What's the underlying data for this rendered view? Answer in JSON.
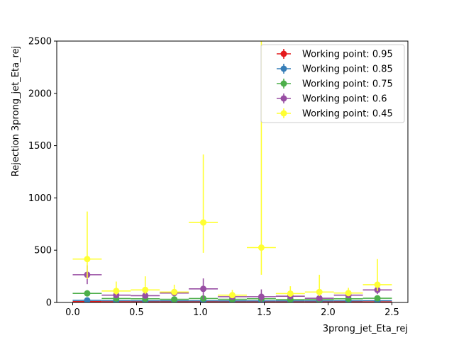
{
  "chart_data": {
    "type": "scatter",
    "title": "",
    "xlabel": "3prong_jet_Eta_rej",
    "ylabel": "Rejection 3prong_jet_Eta_rej",
    "xlim": [
      -0.125,
      2.625
    ],
    "ylim": [
      0,
      2500
    ],
    "xticks": [
      "0.0",
      "0.5",
      "1.0",
      "1.5",
      "2.0",
      "2.5"
    ],
    "yticks": [
      "0",
      "500",
      "1000",
      "1500",
      "2000",
      "2500"
    ],
    "grid": false,
    "legend_position": "top-right",
    "x_bin_halfwidth": 0.1136,
    "x": [
      0.1136,
      0.3409,
      0.5682,
      0.7955,
      1.0227,
      1.25,
      1.4773,
      1.7045,
      1.9318,
      2.1591,
      2.3864
    ],
    "series": [
      {
        "name": "Working point: 0.95",
        "color": "#e41a1c",
        "values": [
          8,
          7,
          7,
          7,
          7,
          6,
          6,
          6,
          6,
          6,
          6
        ],
        "yerr": [
          1,
          1,
          1,
          1,
          1,
          1,
          1,
          1,
          1,
          1,
          1
        ]
      },
      {
        "name": "Working point: 0.85",
        "color": "#377eb8",
        "values": [
          20,
          17,
          16,
          16,
          16,
          15,
          15,
          15,
          15,
          16,
          17
        ],
        "yerr": [
          3,
          2,
          2,
          2,
          2,
          2,
          2,
          2,
          2,
          2,
          3
        ]
      },
      {
        "name": "Working point: 0.75",
        "color": "#4daf4a",
        "values": [
          87,
          38,
          35,
          30,
          38,
          30,
          35,
          28,
          30,
          35,
          40
        ],
        "yerr": [
          30,
          8,
          7,
          6,
          8,
          6,
          8,
          6,
          6,
          8,
          10
        ]
      },
      {
        "name": "Working point: 0.6",
        "color": "#984ea3",
        "values": [
          265,
          70,
          65,
          90,
          130,
          55,
          55,
          60,
          40,
          70,
          120
        ],
        "yerr": [
          90,
          20,
          15,
          20,
          100,
          15,
          70,
          20,
          12,
          20,
          40
        ]
      },
      {
        "name": "Working point: 0.45",
        "color": "#ffff33",
        "values": [
          415,
          110,
          120,
          100,
          765,
          70,
          525,
          85,
          100,
          90,
          170
        ],
        "yerr_low": [
          190,
          40,
          40,
          30,
          290,
          20,
          260,
          30,
          40,
          30,
          60
        ],
        "yerr_high": [
          455,
          90,
          130,
          70,
          650,
          50,
          2000,
          70,
          165,
          50,
          245
        ]
      }
    ]
  }
}
